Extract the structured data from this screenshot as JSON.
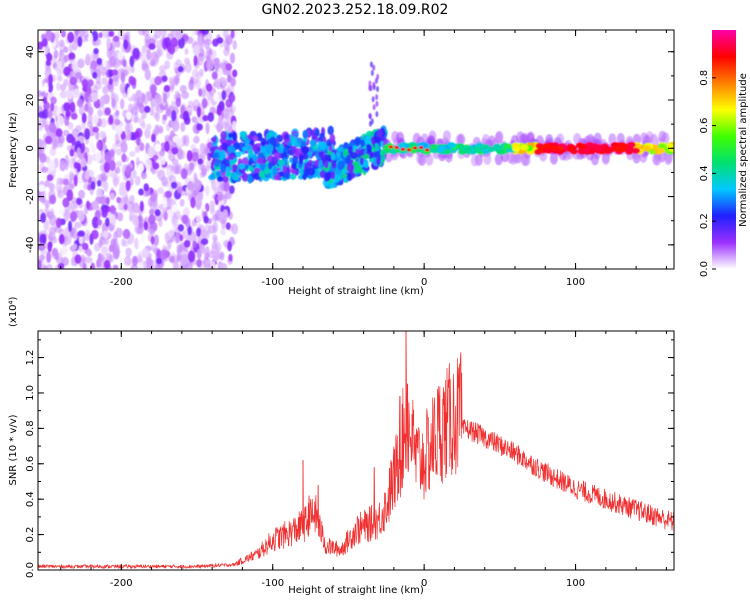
{
  "page_title": "GN02.2023.252.18.09.R02",
  "chart_data": [
    {
      "type": "heatmap",
      "xlabel": "Height of straight line (km)",
      "ylabel": "Frequency (Hz)",
      "xlim": [
        -255,
        165
      ],
      "ylim": [
        -50,
        49
      ],
      "xticks": [
        -200,
        -100,
        0,
        100
      ],
      "xtick_labels": [
        "-200",
        "-100",
        "0",
        "100"
      ],
      "yticks": [
        -40,
        -20,
        0,
        20,
        40
      ],
      "ytick_labels": [
        "-40",
        "-20",
        "0",
        "20",
        "40"
      ],
      "colorbar": {
        "label": "Normalized spectral amplitude",
        "range": [
          0,
          1
        ],
        "ticks": [
          0.0,
          0.2,
          0.4,
          0.6,
          0.8
        ],
        "tick_labels": [
          "0.0",
          "0.2",
          "0.4",
          "0.6",
          "0.8"
        ],
        "colormap": [
          "#ffffff",
          "#9b30ff",
          "#2020ff",
          "#00c8ff",
          "#00e070",
          "#40ff00",
          "#ffff00",
          "#ff7f00",
          "#ff0000",
          "#ff00aa"
        ]
      },
      "regions": [
        {
          "name": "noise",
          "x_range": [
            -255,
            -125
          ],
          "freq_range": [
            -50,
            49
          ],
          "amplitude": [
            0.0,
            0.15
          ]
        },
        {
          "name": "onset",
          "x_range": [
            -140,
            -60
          ],
          "freq_range": [
            -17,
            10
          ],
          "amplitude": [
            0.1,
            0.4
          ]
        },
        {
          "name": "rising",
          "x_range": [
            -65,
            -25
          ],
          "freq_range": [
            -12,
            8
          ],
          "amplitude": [
            0.15,
            0.45
          ]
        },
        {
          "name": "tone",
          "x_range": [
            -25,
            165
          ],
          "freq_range": [
            -2,
            2
          ],
          "amplitude": [
            0.3,
            0.95
          ]
        }
      ],
      "tone_peak": {
        "x_range": [
          75,
          140
        ],
        "amplitude": 0.95
      },
      "grid": false
    },
    {
      "type": "line",
      "xlabel": "Height of straight line (km)",
      "ylabel": "SNR (10 * v/v)",
      "y_multiplier": "(x10⁴)",
      "xlim": [
        -255,
        165
      ],
      "ylim": [
        0.0,
        1.35
      ],
      "xticks": [
        -200,
        -100,
        0,
        100
      ],
      "xtick_labels": [
        "-200",
        "-100",
        "0",
        "100"
      ],
      "yticks": [
        0.0,
        0.2,
        0.4,
        0.6,
        0.8,
        1.0,
        1.2
      ],
      "ytick_labels": [
        "0.0",
        "0.2",
        "0.4",
        "0.6",
        "0.8",
        "1.0",
        "1.2"
      ],
      "series": [
        {
          "color": "#f03030",
          "x": [
            -255,
            -200,
            -150,
            -125,
            -110,
            -100,
            -90,
            -80,
            -72,
            -65,
            -55,
            -45,
            -38,
            -30,
            -25,
            -20,
            -15,
            -12,
            -10,
            -5,
            0,
            10,
            20,
            28,
            40,
            60,
            80,
            100,
            120,
            140,
            165
          ],
          "y": [
            0.02,
            0.02,
            0.02,
            0.03,
            0.08,
            0.15,
            0.18,
            0.22,
            0.28,
            0.12,
            0.1,
            0.2,
            0.22,
            0.25,
            0.32,
            0.45,
            0.6,
            0.75,
            0.7,
            0.55,
            0.55,
            0.7,
            0.76,
            0.8,
            0.75,
            0.66,
            0.55,
            0.46,
            0.4,
            0.34,
            0.27
          ],
          "spikes": [
            {
              "x": -80,
              "y": 0.62
            },
            {
              "x": -76,
              "y": 0.42
            },
            {
              "x": -70,
              "y": 0.48
            },
            {
              "x": -33,
              "y": 0.58
            },
            {
              "x": -22,
              "y": 0.62
            },
            {
              "x": -16,
              "y": 0.98
            },
            {
              "x": -12,
              "y": 1.35
            },
            {
              "x": -11,
              "y": 1.05
            },
            {
              "x": -8,
              "y": 0.88
            }
          ]
        }
      ],
      "grid": false
    }
  ]
}
